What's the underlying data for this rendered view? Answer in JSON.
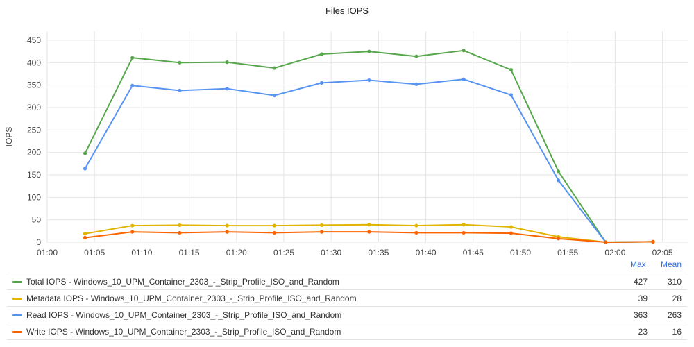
{
  "chart_data": {
    "type": "line",
    "title": "Files IOPS",
    "ylabel": "IOPS",
    "xlabel": "",
    "ylim": [
      0,
      470
    ],
    "yticks": [
      0,
      50,
      100,
      150,
      200,
      250,
      300,
      350,
      400,
      450
    ],
    "x_tick_labels": [
      "01:00",
      "01:05",
      "01:10",
      "01:15",
      "01:20",
      "01:25",
      "01:30",
      "01:35",
      "01:40",
      "01:45",
      "01:50",
      "01:55",
      "02:00",
      "02:05"
    ],
    "x": [
      "01:04",
      "01:09",
      "01:14",
      "01:19",
      "01:24",
      "01:29",
      "01:34",
      "01:39",
      "01:44",
      "01:49",
      "01:54",
      "01:59",
      "02:04"
    ],
    "grid": true,
    "legend_placement": "bottom",
    "series": [
      {
        "name": "Total IOPS - Windows_10_UPM_Container_2303_-_Strip_Profile_ISO_and_Random",
        "color": "#56a64b",
        "values": [
          198,
          411,
          400,
          401,
          388,
          419,
          425,
          414,
          427,
          384,
          158,
          0,
          1
        ],
        "max": "427",
        "mean": "310"
      },
      {
        "name": "Metadata IOPS - Windows_10_UPM_Container_2303_-_Strip_Profile_ISO_and_Random",
        "color": "#e0b400",
        "values": [
          19,
          37,
          38,
          37,
          37,
          38,
          39,
          37,
          39,
          34,
          12,
          0,
          1
        ],
        "max": "39",
        "mean": "28"
      },
      {
        "name": "Read IOPS - Windows_10_UPM_Container_2303_-_Strip_Profile_ISO_and_Random",
        "color": "#5794f2",
        "values": [
          164,
          349,
          338,
          342,
          327,
          355,
          361,
          352,
          363,
          328,
          138,
          0,
          1
        ],
        "max": "363",
        "mean": "263"
      },
      {
        "name": "Write IOPS - Windows_10_UPM_Container_2303_-_Strip_Profile_ISO_and_Random",
        "color": "#fa6400",
        "values": [
          10,
          23,
          21,
          23,
          21,
          23,
          23,
          21,
          21,
          20,
          8,
          0,
          1
        ],
        "max": "23",
        "mean": "16"
      }
    ]
  },
  "legend": {
    "max_header": "Max",
    "mean_header": "Mean"
  }
}
